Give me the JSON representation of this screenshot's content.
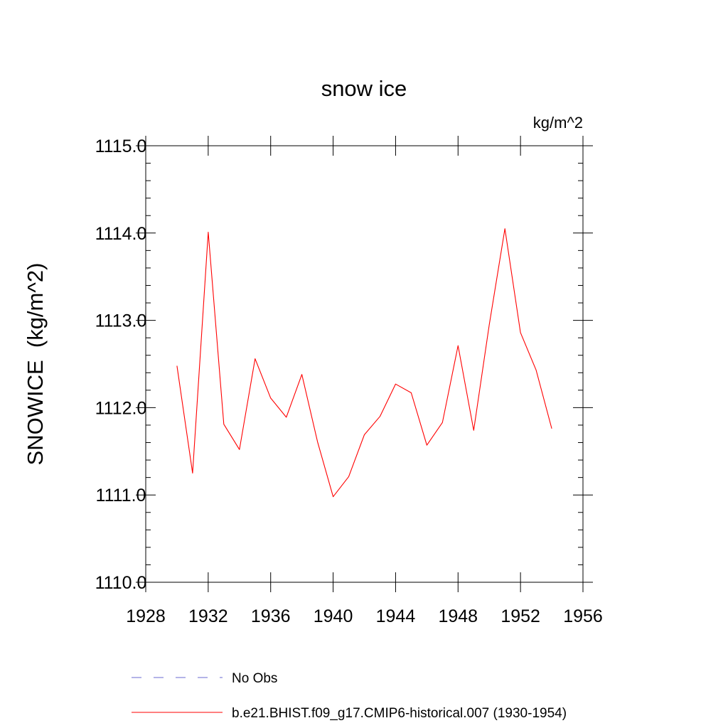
{
  "chart_data": {
    "type": "line",
    "title": "snow ice",
    "subtitle": "kg/m^2",
    "ylabel": "SNOWICE  (kg/m^2)",
    "xlabel": "",
    "xlim": [
      1928,
      1956
    ],
    "ylim": [
      1110.0,
      1115.0
    ],
    "x_ticks": [
      1928,
      1932,
      1936,
      1940,
      1944,
      1948,
      1952,
      1956
    ],
    "x_tick_labels": [
      "1928",
      "1932",
      "1936",
      "1940",
      "1944",
      "1948",
      "1952",
      "1956"
    ],
    "y_ticks": [
      1110.0,
      1111.0,
      1112.0,
      1113.0,
      1114.0,
      1115.0
    ],
    "y_tick_labels": [
      "1110.0",
      "1111.0",
      "1112.0",
      "1113.0",
      "1114.0",
      "1115.0"
    ],
    "grid": false,
    "legend_position": "bottom",
    "series": [
      {
        "name": "b.e21.BHIST.f09_g17.CMIP6-historical.007 (1930-1954)",
        "color": "#ff0000",
        "dash": "solid",
        "x": [
          1930,
          1931,
          1932,
          1933,
          1934,
          1935,
          1936,
          1937,
          1938,
          1939,
          1940,
          1941,
          1942,
          1943,
          1944,
          1945,
          1946,
          1947,
          1948,
          1949,
          1950,
          1951,
          1952,
          1953,
          1954
        ],
        "values": [
          1112.48,
          1111.25,
          1114.01,
          1111.81,
          1111.52,
          1112.56,
          1112.11,
          1111.89,
          1112.38,
          1111.61,
          1110.98,
          1111.21,
          1111.69,
          1111.9,
          1112.27,
          1112.17,
          1111.57,
          1111.83,
          1112.71,
          1111.74,
          1112.95,
          1114.05,
          1112.86,
          1112.43,
          1111.76
        ]
      }
    ],
    "legend": [
      {
        "label": "No Obs",
        "color": "#6a6ad0",
        "dash": "dashed"
      },
      {
        "label": "b.e21.BHIST.f09_g17.CMIP6-historical.007 (1930-1954)",
        "color": "#ff0000",
        "dash": "solid"
      }
    ]
  }
}
